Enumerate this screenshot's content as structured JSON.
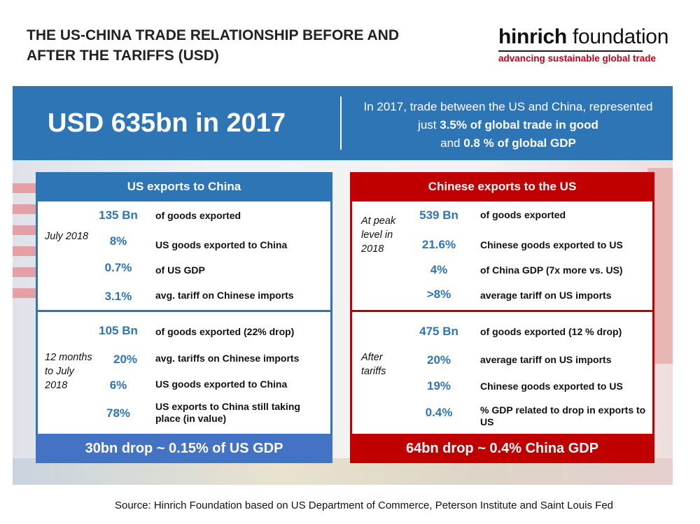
{
  "header": {
    "title": "THE US-CHINA TRADE RELATIONSHIP BEFORE AND AFTER THE TARIFFS (USD)",
    "logo_part1": "hinrich",
    "logo_part2": "foundation",
    "logo_tagline": "advancing sustainable global trade"
  },
  "banner": {
    "headline": "USD 635bn in 2017",
    "line1": "In 2017, trade between the US and China, represented",
    "line2_pre": "just",
    "line2_bold": "3.5% of global trade in good",
    "line3_pre": "and",
    "line3_bold": "0.8 % of global GDP"
  },
  "us": {
    "heading": "US exports to China",
    "before": {
      "period": "July 2018",
      "rows": [
        {
          "value": "135 Bn",
          "label": "of goods exported"
        },
        {
          "value": "8%",
          "label": "US goods exported to China"
        },
        {
          "value": "0.7%",
          "label": "of US GDP"
        },
        {
          "value": "3.1%",
          "label": "avg. tariff on Chinese imports"
        }
      ]
    },
    "after": {
      "period": "12 months to July 2018",
      "rows": [
        {
          "value": "105 Bn",
          "label": "of goods exported (22% drop)"
        },
        {
          "value": "20%",
          "label": "avg. tariffs on Chinese imports"
        },
        {
          "value": "6%",
          "label": "US goods exported to China"
        },
        {
          "value": "78%",
          "label": "US exports to China still taking place (in value)"
        }
      ]
    },
    "footer": "30bn drop ~ 0.15% of US GDP"
  },
  "china": {
    "heading": "Chinese exports to the US",
    "before": {
      "period": "At peak level in 2018",
      "rows": [
        {
          "value": "539 Bn",
          "label": "of goods exported"
        },
        {
          "value": "21.6%",
          "label": "Chinese goods exported to US"
        },
        {
          "value": "4%",
          "label": "of China GDP (7x more vs. US)"
        },
        {
          "value": ">8%",
          "label": "average tariff on US imports"
        }
      ]
    },
    "after": {
      "period": "After tariffs",
      "rows": [
        {
          "value": "475 Bn",
          "label": "of goods exported (12 % drop)"
        },
        {
          "value": "20%",
          "label": "average tariff on US imports"
        },
        {
          "value": "19%",
          "label": "Chinese goods exported to US"
        },
        {
          "value": "0.4%",
          "label": "% GDP related to drop in exports to US"
        }
      ]
    },
    "footer": "64bn drop ~ 0.4% China GDP"
  },
  "source": "Source: Hinrich Foundation based on US Department of Commerce, Peterson Institute and Saint Louis Fed"
}
